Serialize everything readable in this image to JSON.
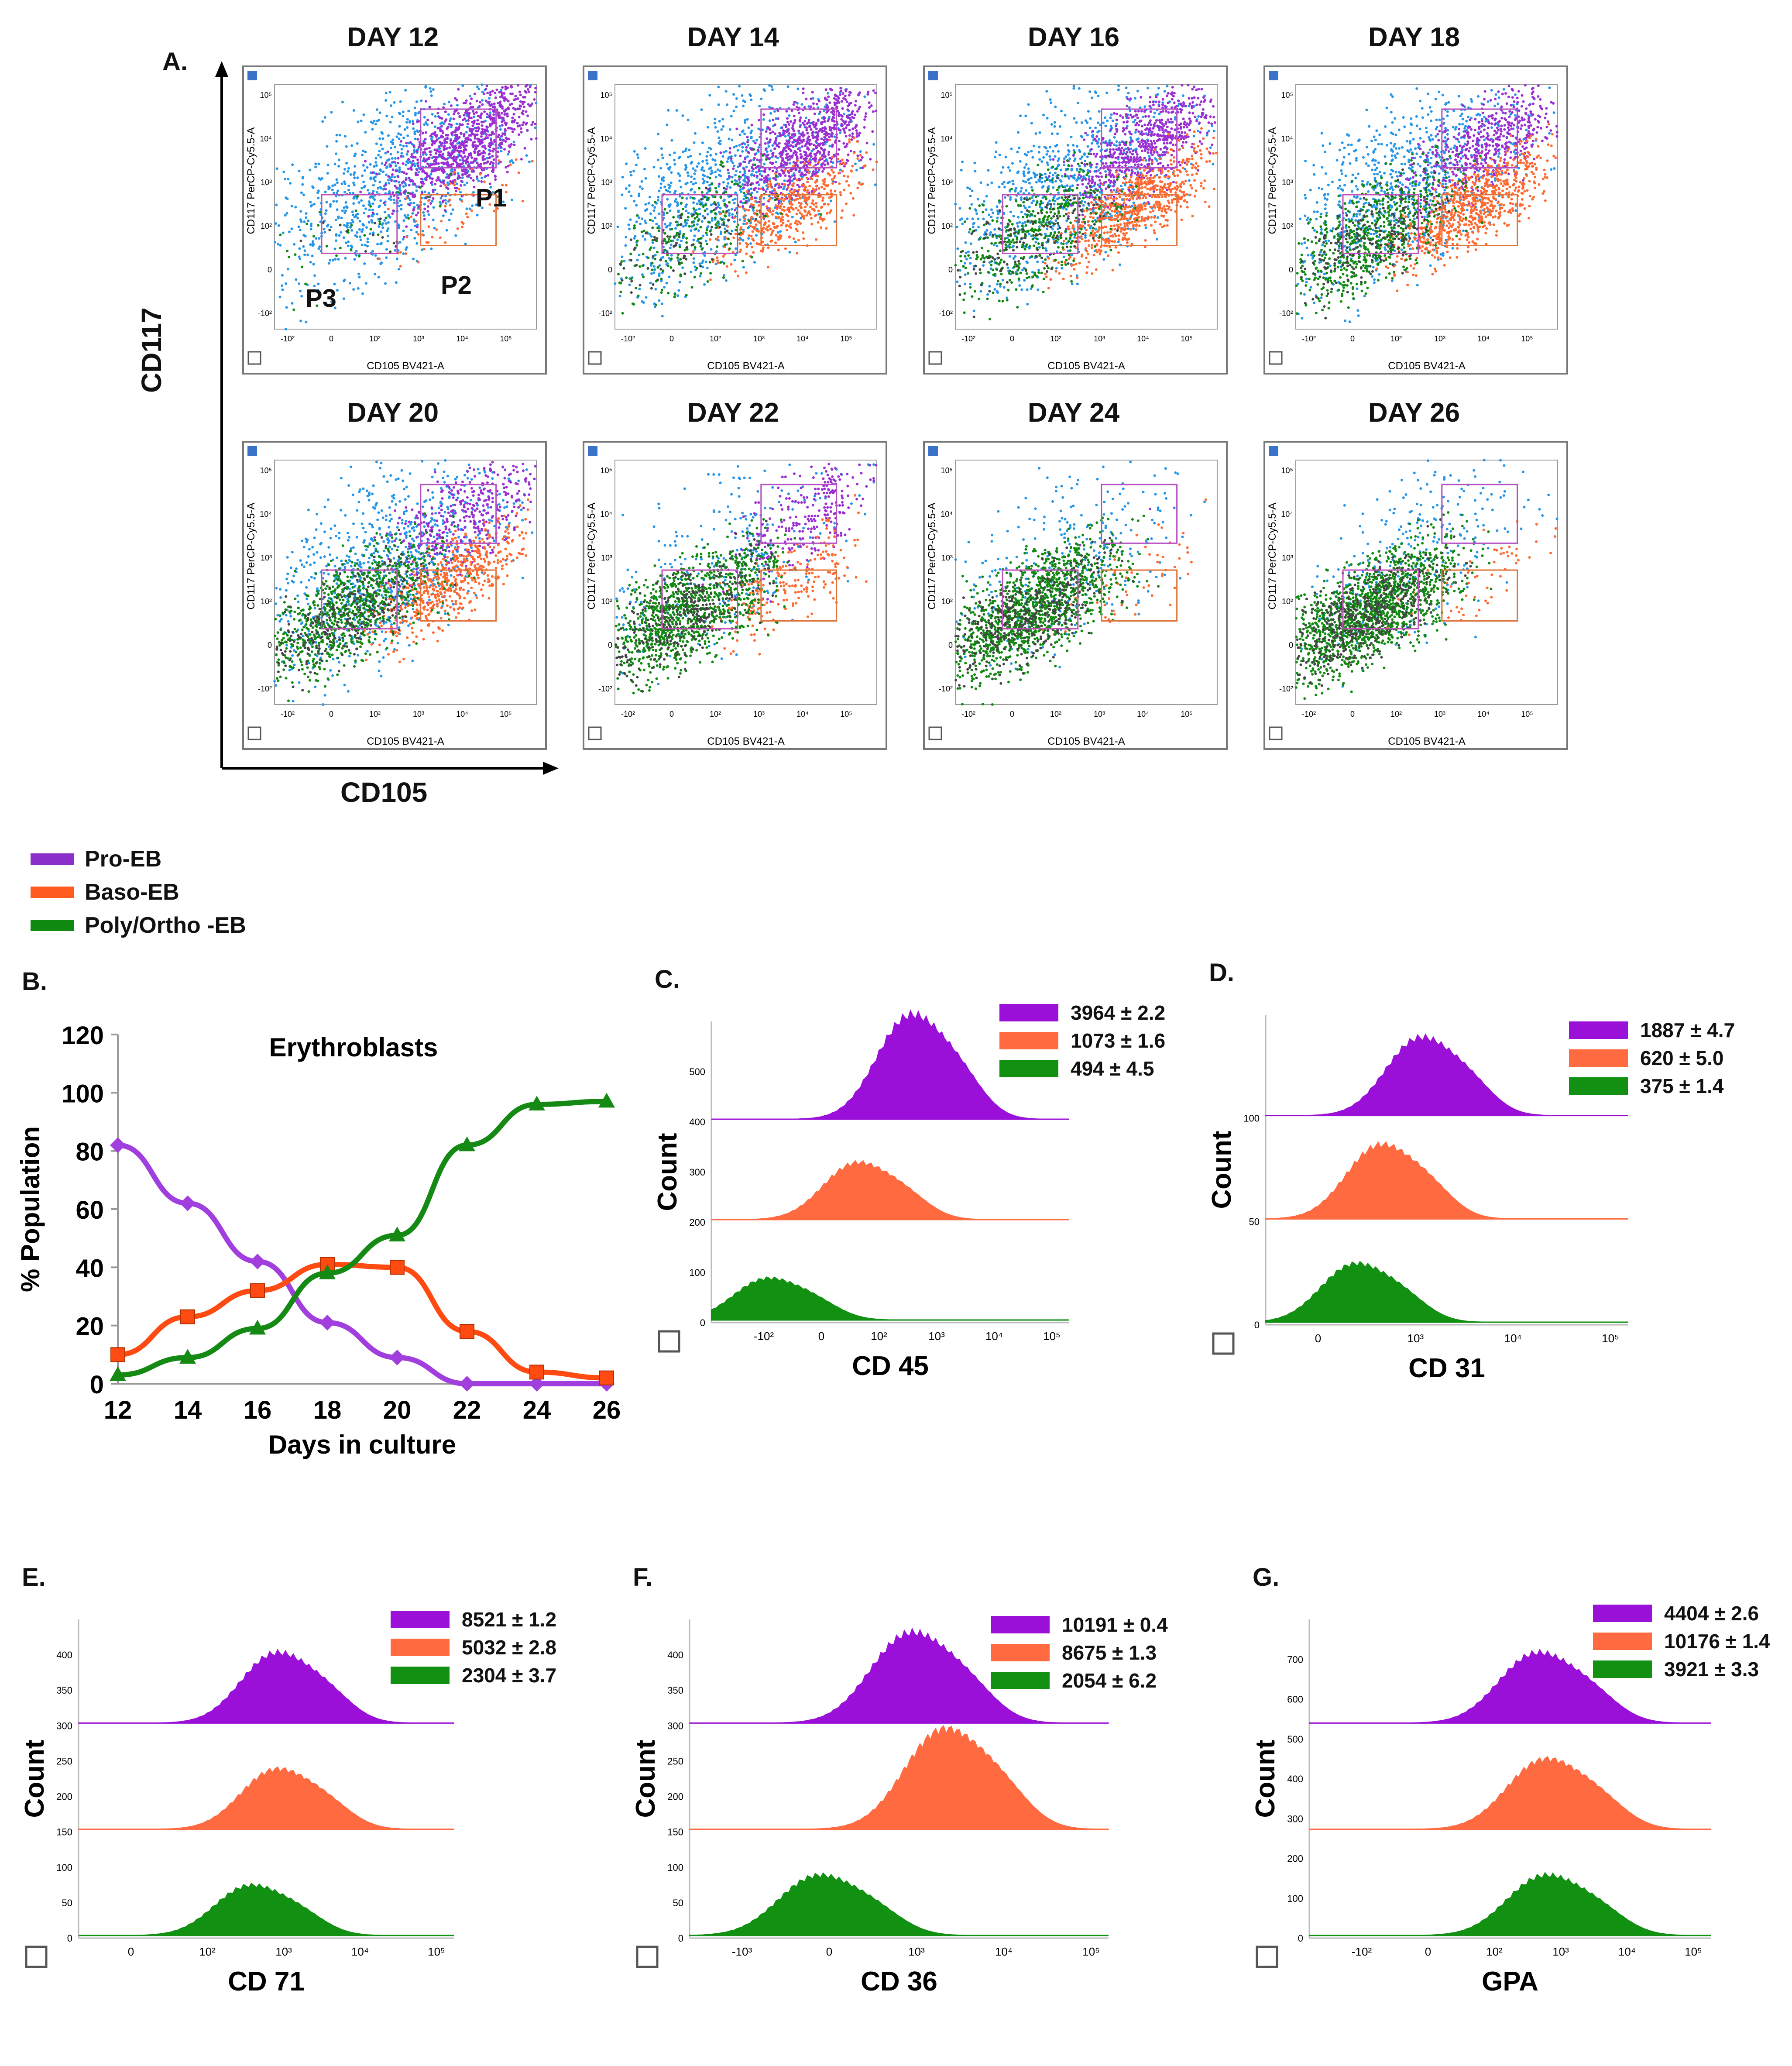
{
  "panel_letters": {
    "a": "A.",
    "b": "B.",
    "c": "C.",
    "d": "D.",
    "e": "E.",
    "f": "F.",
    "g": "G."
  },
  "colors": {
    "pro": "#9b2fd3",
    "baso": "#ff6a30",
    "poly": "#108a10",
    "gray": "#444444",
    "blue": "#2596e8"
  },
  "panel_a": {
    "y_axis_label": "CD117",
    "x_axis_label": "CD105",
    "plot_y_label": "CD117 PerCP-Cy5.5-A",
    "plot_x_label": "CD105 BV421-A",
    "x_ticks": [
      "-10²",
      "0",
      "10²",
      "10³",
      "10⁴",
      "10⁵"
    ],
    "y_ticks": [
      "10⁵",
      "10⁴",
      "10³",
      "10²",
      "0",
      "-10²"
    ],
    "gates": {
      "p1": "P1",
      "p2": "P2",
      "p3": "P3"
    },
    "days": [
      "DAY 12",
      "DAY 14",
      "DAY 16",
      "DAY 18",
      "DAY 20",
      "DAY 22",
      "DAY 24",
      "DAY 26"
    ]
  },
  "legend": [
    "Pro-EB",
    "Baso-EB",
    "Poly/Ortho -EB"
  ],
  "chart_data": [
    {
      "type": "line",
      "panel": "B",
      "title": "Erythroblasts",
      "xlabel": "Days in culture",
      "ylabel": "% Population",
      "x": [
        12,
        14,
        16,
        18,
        20,
        22,
        24,
        26
      ],
      "xlim": [
        12,
        26
      ],
      "ylim": [
        0,
        120
      ],
      "y_ticks": [
        0,
        20,
        40,
        60,
        80,
        100,
        120
      ],
      "series": [
        {
          "name": "Pro-EB",
          "values": [
            82,
            62,
            42,
            21,
            9,
            0,
            0,
            0
          ]
        },
        {
          "name": "Baso-EB",
          "values": [
            10,
            23,
            32,
            41,
            40,
            18,
            4,
            2
          ]
        },
        {
          "name": "Poly/Ortho -EB",
          "values": [
            3,
            9,
            19,
            38,
            51,
            82,
            96,
            97
          ]
        }
      ]
    },
    {
      "type": "area",
      "panel": "C",
      "xlabel": "CD 45",
      "ylabel": "Count",
      "x_ticks": [
        "-10²",
        "0",
        "10²",
        "10³",
        "10⁴",
        "10⁵"
      ],
      "y_ticks": [
        "0",
        "100",
        "200",
        "300",
        "400",
        "500"
      ],
      "series": [
        {
          "name": "Pro-EB",
          "mfi": "3964 ± 2.2"
        },
        {
          "name": "Baso-EB",
          "mfi": "1073 ± 1.6"
        },
        {
          "name": "Poly/Ortho -EB",
          "mfi": "494 ± 4.5"
        }
      ]
    },
    {
      "type": "area",
      "panel": "D",
      "xlabel": "CD 31",
      "ylabel": "Count",
      "x_ticks": [
        "0",
        "10³",
        "10⁴",
        "10⁵"
      ],
      "y_ticks": [
        "0",
        "50",
        "100"
      ],
      "series": [
        {
          "name": "Pro-EB",
          "mfi": "1887 ± 4.7"
        },
        {
          "name": "Baso-EB",
          "mfi": "620 ± 5.0"
        },
        {
          "name": "Poly/Ortho -EB",
          "mfi": "375 ± 1.4"
        }
      ]
    },
    {
      "type": "area",
      "panel": "E",
      "xlabel": "CD 71",
      "ylabel": "Count",
      "x_ticks": [
        "0",
        "10²",
        "10³",
        "10⁴",
        "10⁵"
      ],
      "y_ticks": [
        "0",
        "50",
        "100",
        "150",
        "200",
        "250",
        "300",
        "350",
        "400"
      ],
      "series": [
        {
          "name": "Pro-EB",
          "mfi": "8521 ± 1.2"
        },
        {
          "name": "Baso-EB",
          "mfi": "5032 ± 2.8"
        },
        {
          "name": "Poly/Ortho -EB",
          "mfi": "2304 ± 3.7"
        }
      ]
    },
    {
      "type": "area",
      "panel": "F",
      "xlabel": "CD 36",
      "ylabel": "Count",
      "x_ticks": [
        "-10³",
        "0",
        "10³",
        "10⁴",
        "10⁵"
      ],
      "y_ticks": [
        "0",
        "50",
        "100",
        "150",
        "200",
        "250",
        "300",
        "350",
        "400"
      ],
      "series": [
        {
          "name": "Pro-EB",
          "mfi": "10191 ± 0.4"
        },
        {
          "name": "Baso-EB",
          "mfi": "8675 ± 1.3"
        },
        {
          "name": "Poly/Ortho -EB",
          "mfi": "2054 ± 6.2"
        }
      ]
    },
    {
      "type": "area",
      "panel": "G",
      "xlabel": "GPA",
      "ylabel": "Count",
      "x_ticks": [
        "-10²",
        "0",
        "10²",
        "10³",
        "10⁴",
        "10⁵"
      ],
      "y_ticks": [
        "0",
        "100",
        "200",
        "300",
        "400",
        "500",
        "600",
        "700"
      ],
      "series": [
        {
          "name": "Pro-EB",
          "mfi": "4404 ± 2.6"
        },
        {
          "name": "Baso-EB",
          "mfi": "10176 ± 1.4"
        },
        {
          "name": "Poly/Ortho -EB",
          "mfi": "3921 ± 3.3"
        }
      ]
    }
  ]
}
